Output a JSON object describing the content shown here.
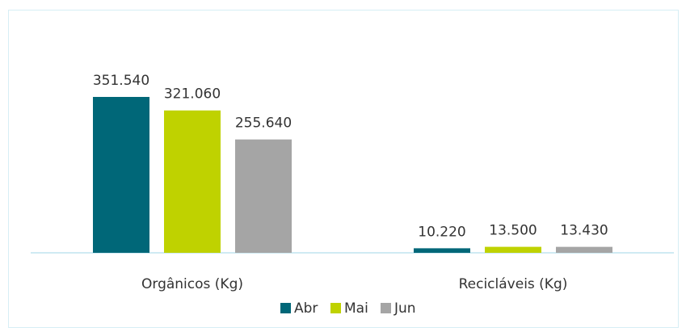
{
  "chart_data": {
    "type": "bar",
    "categories": [
      "Orgânicos (Kg)",
      "Recicláveis (Kg)"
    ],
    "series": [
      {
        "name": "Abr",
        "color": "#006778",
        "values": [
          351540,
          10220
        ],
        "value_labels": [
          "351.540",
          "10.220"
        ]
      },
      {
        "name": "Mai",
        "color": "#bfd200",
        "values": [
          321060,
          13500
        ],
        "value_labels": [
          "321.060",
          "13.500"
        ]
      },
      {
        "name": "Jun",
        "color": "#a5a5a5",
        "values": [
          255640,
          13430
        ],
        "value_labels": [
          "255.640",
          "13.430"
        ]
      }
    ],
    "legend": "bottom"
  }
}
